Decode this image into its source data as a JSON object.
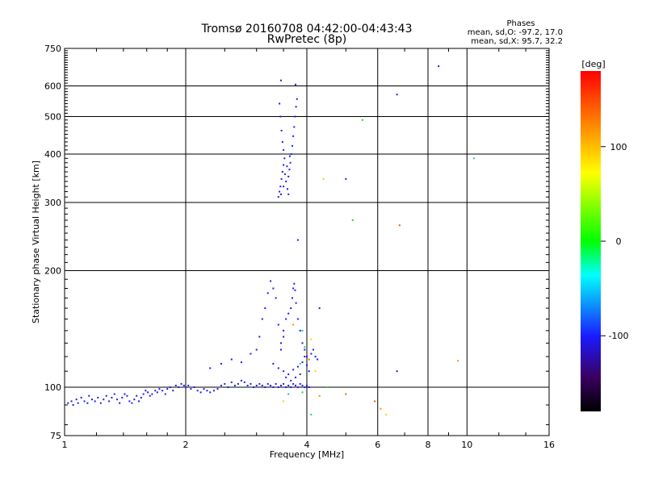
{
  "chart_data": {
    "type": "scatter",
    "title": "Tromsø 20160708 04:42:00-04:43:43",
    "subtitle": "RwPretec (8p)",
    "xlabel": "Frequency [MHz]",
    "ylabel": "Stationary phase Virtual Height [km]",
    "x_scale": "log",
    "y_scale": "log",
    "xlim": [
      1,
      16
    ],
    "ylim": [
      75,
      750
    ],
    "x_ticks": [
      "1",
      "2",
      "4",
      "6",
      "8",
      "10",
      "16"
    ],
    "x_tick_values": [
      1,
      2,
      4,
      6,
      8,
      10,
      16
    ],
    "y_ticks": [
      "75",
      "100",
      "200",
      "300",
      "400",
      "500",
      "600",
      "750"
    ],
    "y_tick_values": [
      75,
      100,
      200,
      300,
      400,
      500,
      600,
      750
    ],
    "grid": true,
    "phases": {
      "title": "Phases",
      "line_o": "mean, sd,O: -97.2, 17.0",
      "line_x": "mean, sd,X:  95.7, 32.2"
    },
    "colorbar": {
      "label": "[deg]",
      "ticks": [
        "100",
        "0",
        "-100"
      ],
      "tick_values": [
        100,
        0,
        -100
      ],
      "range": [
        -180,
        180
      ]
    },
    "series": [
      {
        "name": "",
        "points": [
          [
            1.02,
            91
          ],
          [
            1.04,
            92
          ],
          [
            1.05,
            90
          ],
          [
            1.07,
            93
          ],
          [
            1.08,
            91
          ],
          [
            1.1,
            94
          ],
          [
            1.12,
            92
          ],
          [
            1.14,
            91
          ],
          [
            1.15,
            95
          ],
          [
            1.17,
            93
          ],
          [
            1.19,
            92
          ],
          [
            1.21,
            94
          ],
          [
            1.23,
            91
          ],
          [
            1.25,
            93
          ],
          [
            1.27,
            95
          ],
          [
            1.29,
            92
          ],
          [
            1.31,
            94
          ],
          [
            1.33,
            96
          ],
          [
            1.35,
            93
          ],
          [
            1.37,
            91
          ],
          [
            1.39,
            94
          ],
          [
            1.41,
            96
          ],
          [
            1.43,
            95
          ],
          [
            1.45,
            92
          ],
          [
            1.47,
            91
          ],
          [
            1.49,
            93
          ],
          [
            1.51,
            95
          ],
          [
            1.53,
            92
          ],
          [
            1.55,
            94
          ],
          [
            1.57,
            96
          ],
          [
            1.59,
            98
          ],
          [
            1.61,
            97
          ],
          [
            1.63,
            95
          ],
          [
            1.65,
            96
          ],
          [
            1.68,
            98
          ],
          [
            1.7,
            97
          ],
          [
            1.72,
            99
          ],
          [
            1.75,
            98
          ],
          [
            1.78,
            96
          ],
          [
            1.8,
            99
          ],
          [
            1.83,
            100
          ],
          [
            1.86,
            98
          ],
          [
            1.89,
            101
          ],
          [
            1.92,
            100
          ],
          [
            1.95,
            102
          ],
          [
            1.98,
            101
          ],
          [
            2.0,
            100
          ],
          [
            2.03,
            101
          ],
          [
            2.06,
            99
          ],
          [
            2.1,
            100
          ],
          [
            2.14,
            98
          ],
          [
            2.18,
            97
          ],
          [
            2.22,
            99
          ],
          [
            2.26,
            98
          ],
          [
            2.3,
            97
          ],
          [
            2.35,
            98
          ],
          [
            2.4,
            99
          ],
          [
            2.45,
            101
          ],
          [
            2.5,
            102
          ],
          [
            2.55,
            100
          ],
          [
            2.6,
            103
          ],
          [
            2.65,
            101
          ],
          [
            2.7,
            102
          ],
          [
            2.75,
            104
          ],
          [
            2.8,
            103
          ],
          [
            2.85,
            101
          ],
          [
            2.9,
            102
          ],
          [
            2.95,
            100
          ],
          [
            3.0,
            101
          ],
          [
            3.05,
            102
          ],
          [
            3.1,
            101
          ],
          [
            3.15,
            100
          ],
          [
            3.2,
            102
          ],
          [
            3.25,
            101
          ],
          [
            3.3,
            100
          ],
          [
            3.35,
            102
          ],
          [
            3.4,
            100
          ],
          [
            3.45,
            101
          ],
          [
            3.5,
            102
          ],
          [
            3.55,
            100
          ],
          [
            3.6,
            101
          ],
          [
            3.65,
            100
          ],
          [
            3.7,
            102
          ],
          [
            3.75,
            101
          ],
          [
            3.8,
            100
          ],
          [
            3.85,
            102
          ],
          [
            3.9,
            101
          ],
          [
            3.95,
            100
          ],
          [
            4.0,
            101
          ],
          [
            4.05,
            100
          ],
          [
            2.3,
            112
          ],
          [
            2.45,
            115
          ],
          [
            2.6,
            118
          ],
          [
            2.75,
            116
          ],
          [
            2.9,
            122
          ],
          [
            3.0,
            125
          ],
          [
            3.05,
            135
          ],
          [
            3.1,
            150
          ],
          [
            3.15,
            160
          ],
          [
            3.2,
            175
          ],
          [
            3.25,
            188
          ],
          [
            3.3,
            180
          ],
          [
            3.35,
            170
          ],
          [
            3.4,
            145
          ],
          [
            3.45,
            130
          ],
          [
            3.5,
            140
          ],
          [
            3.55,
            150
          ],
          [
            3.6,
            155
          ],
          [
            3.65,
            160
          ],
          [
            3.68,
            170
          ],
          [
            3.7,
            180
          ],
          [
            3.72,
            185
          ],
          [
            3.74,
            178
          ],
          [
            3.76,
            165
          ],
          [
            3.8,
            150
          ],
          [
            3.85,
            140
          ],
          [
            3.9,
            130
          ],
          [
            3.95,
            125
          ],
          [
            4.0,
            120
          ],
          [
            4.05,
            118
          ],
          [
            4.1,
            122
          ],
          [
            4.15,
            125
          ],
          [
            4.2,
            120
          ],
          [
            4.25,
            118
          ],
          [
            3.3,
            115
          ],
          [
            3.4,
            112
          ],
          [
            3.5,
            110
          ],
          [
            3.6,
            108
          ],
          [
            3.7,
            111
          ],
          [
            3.8,
            113
          ],
          [
            3.9,
            116
          ],
          [
            3.95,
            120
          ],
          [
            4.0,
            114
          ],
          [
            4.05,
            110
          ],
          [
            3.55,
            106
          ],
          [
            3.65,
            104
          ],
          [
            3.75,
            106
          ],
          [
            3.85,
            108
          ],
          [
            3.45,
            125
          ],
          [
            3.5,
            135
          ],
          [
            3.4,
            310
          ],
          [
            3.42,
            320
          ],
          [
            3.44,
            330
          ],
          [
            3.46,
            345
          ],
          [
            3.48,
            360
          ],
          [
            3.5,
            375
          ],
          [
            3.52,
            390
          ],
          [
            3.5,
            410
          ],
          [
            3.48,
            430
          ],
          [
            3.46,
            460
          ],
          [
            3.44,
            500
          ],
          [
            3.42,
            540
          ],
          [
            3.45,
            315
          ],
          [
            3.5,
            330
          ],
          [
            3.55,
            340
          ],
          [
            3.6,
            350
          ],
          [
            3.62,
            365
          ],
          [
            3.64,
            380
          ],
          [
            3.66,
            400
          ],
          [
            3.68,
            420
          ],
          [
            3.7,
            445
          ],
          [
            3.72,
            470
          ],
          [
            3.74,
            500
          ],
          [
            3.76,
            530
          ],
          [
            3.78,
            555
          ],
          [
            3.6,
            315
          ],
          [
            3.58,
            325
          ],
          [
            3.53,
            355
          ],
          [
            3.57,
            372
          ],
          [
            3.63,
            395
          ],
          [
            3.45,
            620
          ],
          [
            3.75,
            605
          ],
          [
            3.8,
            240
          ],
          [
            4.3,
            160
          ],
          [
            5.0,
            345
          ],
          [
            6.7,
            570
          ],
          [
            8.5,
            675
          ],
          [
            6.7,
            110
          ]
        ]
      },
      {
        "name": "",
        "points": [
          [
            3.7,
            145
          ],
          [
            3.9,
            140
          ],
          [
            4.1,
            133
          ],
          [
            3.95,
            127
          ],
          [
            4.0,
            123
          ],
          [
            4.05,
            118
          ],
          [
            3.85,
            115
          ],
          [
            4.2,
            110
          ],
          [
            4.5,
            100
          ],
          [
            5.0,
            96
          ],
          [
            4.3,
            95
          ],
          [
            3.6,
            96
          ],
          [
            4.4,
            345
          ],
          [
            5.2,
            270
          ],
          [
            5.9,
            92
          ],
          [
            6.1,
            88
          ],
          [
            4.1,
            85
          ],
          [
            6.3,
            85
          ],
          [
            5.5,
            490
          ],
          [
            6.8,
            262
          ],
          [
            9.5,
            117
          ],
          [
            10.4,
            390
          ],
          [
            3.5,
            92
          ],
          [
            3.9,
            97
          ]
        ]
      }
    ]
  }
}
